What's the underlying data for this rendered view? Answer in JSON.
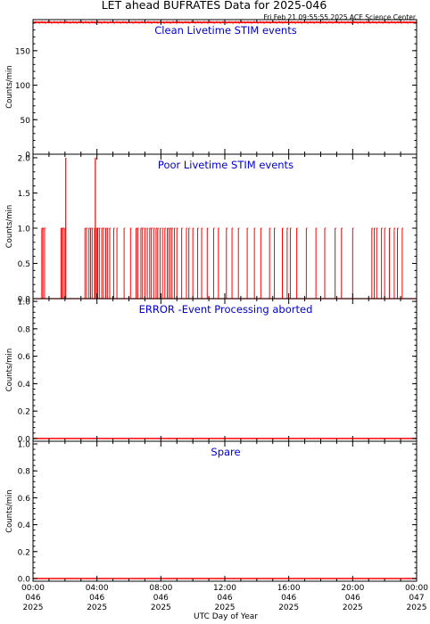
{
  "header": {
    "title": "LET ahead BUFRATES Data for 2025-046",
    "timestamp": "Fri Feb 21 09:55:55 2025 ACE Science Center"
  },
  "colors": {
    "data": "#ff0000",
    "panel_title": "#0000cc",
    "axes": "#000000"
  },
  "x_axis": {
    "label": "UTC Day of Year",
    "ticks": [
      {
        "hours": 0,
        "lines": [
          "00:00",
          "046",
          "2025"
        ]
      },
      {
        "hours": 4,
        "lines": [
          "04:00",
          "046",
          "2025"
        ]
      },
      {
        "hours": 8,
        "lines": [
          "08:00",
          "046",
          "2025"
        ]
      },
      {
        "hours": 12,
        "lines": [
          "12:00",
          "046",
          "2025"
        ]
      },
      {
        "hours": 16,
        "lines": [
          "16:00",
          "046",
          "2025"
        ]
      },
      {
        "hours": 20,
        "lines": [
          "20:00",
          "046",
          "2025"
        ]
      },
      {
        "hours": 24,
        "lines": [
          "00:00",
          "047",
          "2025"
        ]
      }
    ]
  },
  "chart_data": [
    {
      "type": "line",
      "title": "Clean Livetime STIM events",
      "ylabel": "Counts/min",
      "ylim": [
        0,
        195
      ],
      "yticks": [
        0,
        50,
        100,
        150
      ],
      "ytick_labels": [
        "0",
        "50",
        "100",
        "150"
      ],
      "x": [
        0,
        24
      ],
      "values": [
        191,
        191
      ]
    },
    {
      "type": "line",
      "title": "Poor Livetime STIM events",
      "ylabel": "Counts/min",
      "ylim": [
        0,
        2.05
      ],
      "yticks": [
        0,
        0.5,
        1,
        1.5,
        2
      ],
      "ytick_labels": [
        "0.0",
        "0.5",
        "1.0",
        "1.5",
        "2.0"
      ],
      "spikes_x": [
        0.55,
        0.62,
        0.72,
        1.75,
        1.82,
        1.9,
        2.0,
        3.25,
        3.35,
        3.5,
        3.6,
        3.7,
        3.85,
        4.0,
        4.05,
        4.15,
        4.3,
        4.4,
        4.55,
        4.65,
        4.8,
        5.05,
        5.25,
        5.7,
        6.1,
        6.45,
        6.55,
        6.75,
        6.85,
        7.0,
        7.15,
        7.3,
        7.4,
        7.55,
        7.7,
        7.8,
        7.95,
        8.1,
        8.25,
        8.4,
        8.5,
        8.6,
        8.7,
        8.85,
        9.0,
        9.3,
        9.6,
        9.75,
        10.0,
        10.3,
        10.55,
        10.9,
        11.3,
        11.6,
        12.1,
        12.45,
        12.85,
        13.4,
        13.85,
        14.25,
        14.8,
        15.1,
        15.6,
        15.9,
        16.1,
        16.5,
        17.1,
        17.7,
        18.25,
        18.9,
        19.3,
        20.0,
        21.2,
        21.35,
        21.5,
        21.8,
        22.0,
        22.3,
        22.6,
        22.8,
        23.1
      ],
      "spikes2_x": [
        2.05,
        3.9
      ]
    },
    {
      "type": "line",
      "title": "ERROR -Event Processing aborted",
      "ylabel": "Counts/min",
      "ylim": [
        -0.02,
        1.02
      ],
      "yticks": [
        0,
        0.2,
        0.4,
        0.6,
        0.8,
        1
      ],
      "ytick_labels": [
        "0.0",
        "0.2",
        "0.4",
        "0.6",
        "0.8",
        "1.0"
      ],
      "x": [
        0,
        24
      ],
      "values": [
        0,
        0
      ]
    },
    {
      "type": "line",
      "title": "Spare",
      "ylabel": "Counts/min",
      "ylim": [
        -0.02,
        1.02
      ],
      "yticks": [
        0,
        0.2,
        0.4,
        0.6,
        0.8,
        1
      ],
      "ytick_labels": [
        "0.0",
        "0.2",
        "0.4",
        "0.6",
        "0.8",
        "1.0"
      ],
      "x": [
        0,
        24
      ],
      "values": [
        0,
        0
      ]
    }
  ]
}
